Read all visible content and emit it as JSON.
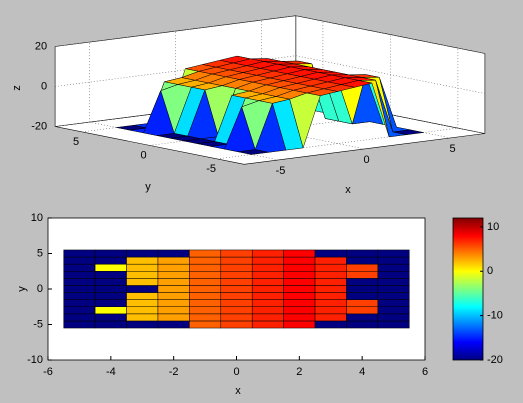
{
  "chart_data": [
    {
      "type": "surface",
      "x": [
        -5,
        -4,
        -3,
        -2,
        -1,
        0,
        1,
        2,
        3,
        4,
        5
      ],
      "y": [
        -5,
        -4,
        -3,
        -2,
        -1,
        0,
        1,
        2,
        3,
        4,
        5
      ],
      "z": [
        [
          -20,
          -20,
          -20,
          -20,
          5,
          6,
          7,
          8,
          -20,
          -20,
          -20
        ],
        [
          -20,
          -20,
          2,
          3,
          5,
          6,
          7,
          8,
          7,
          -20,
          -20
        ],
        [
          -20,
          0,
          2,
          3,
          5,
          6,
          7,
          8,
          7,
          6,
          -20
        ],
        [
          -20,
          -20,
          2,
          3,
          5,
          6,
          7,
          8,
          7,
          6,
          -20
        ],
        [
          -20,
          -20,
          2,
          3,
          5,
          6,
          7,
          8,
          7,
          -20,
          -20
        ],
        [
          -20,
          -20,
          -20,
          3,
          5,
          6,
          7,
          8,
          7,
          -20,
          -20
        ],
        [
          -20,
          -20,
          2,
          3,
          5,
          6,
          7,
          8,
          7,
          -20,
          -20
        ],
        [
          -20,
          -20,
          2,
          3,
          5,
          6,
          7,
          8,
          7,
          6,
          -20
        ],
        [
          -20,
          0,
          2,
          3,
          5,
          6,
          7,
          8,
          7,
          6,
          -20
        ],
        [
          -20,
          -20,
          2,
          3,
          5,
          6,
          7,
          8,
          7,
          -20,
          -20
        ],
        [
          -20,
          -20,
          -20,
          -20,
          5,
          6,
          7,
          8,
          -20,
          -20,
          -20
        ]
      ],
      "xlabel": "x",
      "ylabel": "y",
      "zlabel": "z",
      "xlim": [
        -7,
        7
      ],
      "ylim": [
        -7,
        7
      ],
      "zlim": [
        -20,
        20
      ],
      "xticks": [
        -5,
        0,
        5
      ],
      "yticks": [
        -5,
        0,
        5
      ],
      "zticks": [
        -20,
        0,
        20
      ],
      "grid": true,
      "colormap": "jet",
      "clim": [
        -20,
        12
      ]
    },
    {
      "type": "heatmap",
      "x": [
        -5,
        -4,
        -3,
        -2,
        -1,
        0,
        1,
        2,
        3,
        4,
        5
      ],
      "y": [
        -5,
        -4,
        -3,
        -2,
        -1,
        0,
        1,
        2,
        3,
        4,
        5
      ],
      "z": [
        [
          -20,
          -20,
          -20,
          -20,
          5,
          6,
          7,
          8,
          -20,
          -20,
          -20
        ],
        [
          -20,
          -20,
          2,
          3,
          5,
          6,
          7,
          8,
          7,
          -20,
          -20
        ],
        [
          -20,
          0,
          2,
          3,
          5,
          6,
          7,
          8,
          7,
          6,
          -20
        ],
        [
          -20,
          -20,
          2,
          3,
          5,
          6,
          7,
          8,
          7,
          6,
          -20
        ],
        [
          -20,
          -20,
          2,
          3,
          5,
          6,
          7,
          8,
          7,
          -20,
          -20
        ],
        [
          -20,
          -20,
          -20,
          3,
          5,
          6,
          7,
          8,
          7,
          -20,
          -20
        ],
        [
          -20,
          -20,
          2,
          3,
          5,
          6,
          7,
          8,
          7,
          -20,
          -20
        ],
        [
          -20,
          -20,
          2,
          3,
          5,
          6,
          7,
          8,
          7,
          6,
          -20
        ],
        [
          -20,
          0,
          2,
          3,
          5,
          6,
          7,
          8,
          7,
          6,
          -20
        ],
        [
          -20,
          -20,
          2,
          3,
          5,
          6,
          7,
          8,
          7,
          -20,
          -20
        ],
        [
          -20,
          -20,
          -20,
          -20,
          5,
          6,
          7,
          8,
          -20,
          -20,
          -20
        ]
      ],
      "xlabel": "x",
      "ylabel": "y",
      "xlim": [
        -6,
        6
      ],
      "ylim": [
        -10,
        10
      ],
      "xticks": [
        -6,
        -4,
        -2,
        0,
        2,
        4,
        6
      ],
      "yticks": [
        -10,
        -5,
        0,
        5,
        10
      ],
      "colormap": "jet",
      "clim": [
        -20,
        12
      ],
      "colorbar_ticks": [
        -20,
        -10,
        0,
        10
      ]
    }
  ]
}
